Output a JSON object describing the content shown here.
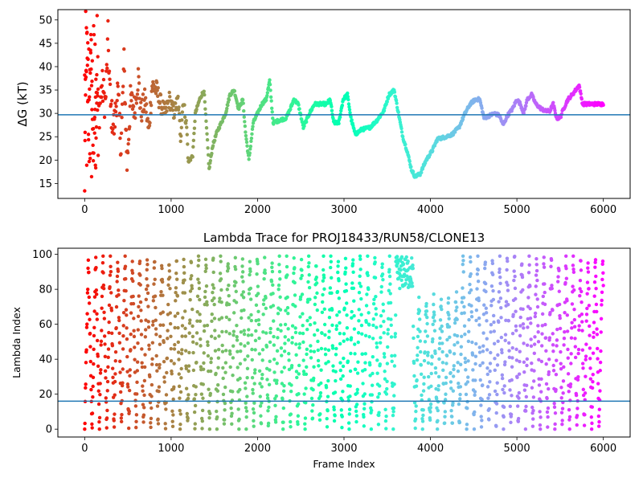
{
  "figure": {
    "title": "Lambda Trace for PROJ18433/RUN58/CLONE13",
    "top_ylabel": "ΔG (kT)",
    "bottom_ylabel": "Lambda Index",
    "bottom_xlabel": "Frame Index"
  },
  "colors": {
    "reference_line": "#1f77b4",
    "colormap": "rainbow"
  },
  "chart_data": [
    {
      "type": "scatter",
      "title": "",
      "xlabel": "",
      "ylabel": "ΔG (kT)",
      "xlim": [
        -310,
        6310
      ],
      "ylim": [
        11.8,
        52.2
      ],
      "x_ticks": [
        0,
        1000,
        2000,
        3000,
        4000,
        5000,
        6000
      ],
      "y_ticks": [
        15,
        20,
        25,
        30,
        35,
        40,
        45,
        50
      ],
      "grid": false,
      "color_by": "frame index (rainbow colormap, red at 0 to violet at 6000)",
      "reference_line_y": 29.7,
      "frame_count": 6000,
      "trace_keypoints": [
        {
          "x": 0,
          "y": 14
        },
        {
          "x": 20,
          "y": 48
        },
        {
          "x": 45,
          "y": 28
        },
        {
          "x": 70,
          "y": 44
        },
        {
          "x": 100,
          "y": 22
        },
        {
          "x": 130,
          "y": 38
        },
        {
          "x": 165,
          "y": 30
        },
        {
          "x": 200,
          "y": 36
        },
        {
          "x": 240,
          "y": 32
        },
        {
          "x": 270,
          "y": 46
        },
        {
          "x": 300,
          "y": 31
        },
        {
          "x": 340,
          "y": 27
        },
        {
          "x": 380,
          "y": 35
        },
        {
          "x": 420,
          "y": 23
        },
        {
          "x": 455,
          "y": 41
        },
        {
          "x": 490,
          "y": 19
        },
        {
          "x": 530,
          "y": 33
        },
        {
          "x": 580,
          "y": 31
        },
        {
          "x": 620,
          "y": 38
        },
        {
          "x": 650,
          "y": 30
        },
        {
          "x": 700,
          "y": 33
        },
        {
          "x": 740,
          "y": 26
        },
        {
          "x": 780,
          "y": 36
        },
        {
          "x": 830,
          "y": 35
        },
        {
          "x": 880,
          "y": 32
        },
        {
          "x": 930,
          "y": 30
        },
        {
          "x": 980,
          "y": 33
        },
        {
          "x": 1030,
          "y": 30
        },
        {
          "x": 1080,
          "y": 33
        },
        {
          "x": 1110,
          "y": 25
        },
        {
          "x": 1140,
          "y": 33
        },
        {
          "x": 1180,
          "y": 27
        },
        {
          "x": 1200,
          "y": 19.5
        },
        {
          "x": 1250,
          "y": 21
        },
        {
          "x": 1280,
          "y": 30
        },
        {
          "x": 1330,
          "y": 33
        },
        {
          "x": 1380,
          "y": 35
        },
        {
          "x": 1420,
          "y": 24
        },
        {
          "x": 1440,
          "y": 18
        },
        {
          "x": 1480,
          "y": 23
        },
        {
          "x": 1530,
          "y": 26
        },
        {
          "x": 1580,
          "y": 28
        },
        {
          "x": 1630,
          "y": 30
        },
        {
          "x": 1680,
          "y": 34
        },
        {
          "x": 1730,
          "y": 35
        },
        {
          "x": 1780,
          "y": 31
        },
        {
          "x": 1830,
          "y": 33
        },
        {
          "x": 1860,
          "y": 26
        },
        {
          "x": 1900,
          "y": 20
        },
        {
          "x": 1950,
          "y": 28
        },
        {
          "x": 2000,
          "y": 30
        },
        {
          "x": 2050,
          "y": 32
        },
        {
          "x": 2100,
          "y": 33
        },
        {
          "x": 2140,
          "y": 37
        },
        {
          "x": 2180,
          "y": 28
        },
        {
          "x": 2250,
          "y": 28.5
        },
        {
          "x": 2330,
          "y": 29
        },
        {
          "x": 2380,
          "y": 31
        },
        {
          "x": 2420,
          "y": 33
        },
        {
          "x": 2470,
          "y": 32
        },
        {
          "x": 2530,
          "y": 27
        },
        {
          "x": 2600,
          "y": 30
        },
        {
          "x": 2660,
          "y": 32
        },
        {
          "x": 2730,
          "y": 32
        },
        {
          "x": 2800,
          "y": 32
        },
        {
          "x": 2840,
          "y": 33
        },
        {
          "x": 2880,
          "y": 28
        },
        {
          "x": 2940,
          "y": 28
        },
        {
          "x": 2990,
          "y": 33
        },
        {
          "x": 3040,
          "y": 34
        },
        {
          "x": 3080,
          "y": 29
        },
        {
          "x": 3130,
          "y": 25.5
        },
        {
          "x": 3200,
          "y": 26.5
        },
        {
          "x": 3300,
          "y": 27
        },
        {
          "x": 3380,
          "y": 28.5
        },
        {
          "x": 3460,
          "y": 30.5
        },
        {
          "x": 3520,
          "y": 34
        },
        {
          "x": 3580,
          "y": 35
        },
        {
          "x": 3620,
          "y": 31
        },
        {
          "x": 3680,
          "y": 25
        },
        {
          "x": 3730,
          "y": 22
        },
        {
          "x": 3780,
          "y": 18
        },
        {
          "x": 3820,
          "y": 16.5
        },
        {
          "x": 3880,
          "y": 17
        },
        {
          "x": 3950,
          "y": 20
        },
        {
          "x": 4020,
          "y": 22
        },
        {
          "x": 4080,
          "y": 24.5
        },
        {
          "x": 4180,
          "y": 25
        },
        {
          "x": 4250,
          "y": 25.5
        },
        {
          "x": 4330,
          "y": 27
        },
        {
          "x": 4400,
          "y": 30
        },
        {
          "x": 4460,
          "y": 32
        },
        {
          "x": 4520,
          "y": 33
        },
        {
          "x": 4570,
          "y": 33
        },
        {
          "x": 4620,
          "y": 29
        },
        {
          "x": 4680,
          "y": 29.5
        },
        {
          "x": 4740,
          "y": 30
        },
        {
          "x": 4800,
          "y": 29.5
        },
        {
          "x": 4840,
          "y": 27.5
        },
        {
          "x": 4890,
          "y": 29.5
        },
        {
          "x": 4950,
          "y": 31
        },
        {
          "x": 5000,
          "y": 33
        },
        {
          "x": 5040,
          "y": 32
        },
        {
          "x": 5080,
          "y": 30
        },
        {
          "x": 5120,
          "y": 33
        },
        {
          "x": 5170,
          "y": 34
        },
        {
          "x": 5220,
          "y": 32
        },
        {
          "x": 5280,
          "y": 31
        },
        {
          "x": 5330,
          "y": 30.5
        },
        {
          "x": 5380,
          "y": 30.5
        },
        {
          "x": 5420,
          "y": 32
        },
        {
          "x": 5460,
          "y": 29
        },
        {
          "x": 5500,
          "y": 29
        },
        {
          "x": 5540,
          "y": 31
        },
        {
          "x": 5590,
          "y": 33
        },
        {
          "x": 5640,
          "y": 34
        },
        {
          "x": 5680,
          "y": 35
        },
        {
          "x": 5720,
          "y": 36
        },
        {
          "x": 5760,
          "y": 32
        },
        {
          "x": 5850,
          "y": 32
        },
        {
          "x": 5950,
          "y": 32
        },
        {
          "x": 6000,
          "y": 32
        }
      ]
    },
    {
      "type": "scatter",
      "title": "Lambda Trace for PROJ18433/RUN58/CLONE13",
      "xlabel": "Frame Index",
      "ylabel": "Lambda Index",
      "xlim": [
        -310,
        6310
      ],
      "ylim": [
        -4.5,
        103.5
      ],
      "x_ticks": [
        0,
        1000,
        2000,
        3000,
        4000,
        5000,
        6000
      ],
      "y_ticks": [
        0,
        20,
        40,
        60,
        80,
        100
      ],
      "grid": false,
      "color_by": "frame index (rainbow colormap, red at 0 to violet at 6000)",
      "reference_line_y": 16,
      "frame_count": 6000,
      "sweep_period_frames": 85,
      "value_range": [
        0,
        99
      ],
      "high_dwell": {
        "x_range": [
          3600,
          3800
        ],
        "y_range": [
          80,
          99
        ]
      },
      "low_range_region": {
        "x_range": [
          3820,
          4300
        ],
        "y_range": [
          0,
          75
        ]
      }
    }
  ]
}
